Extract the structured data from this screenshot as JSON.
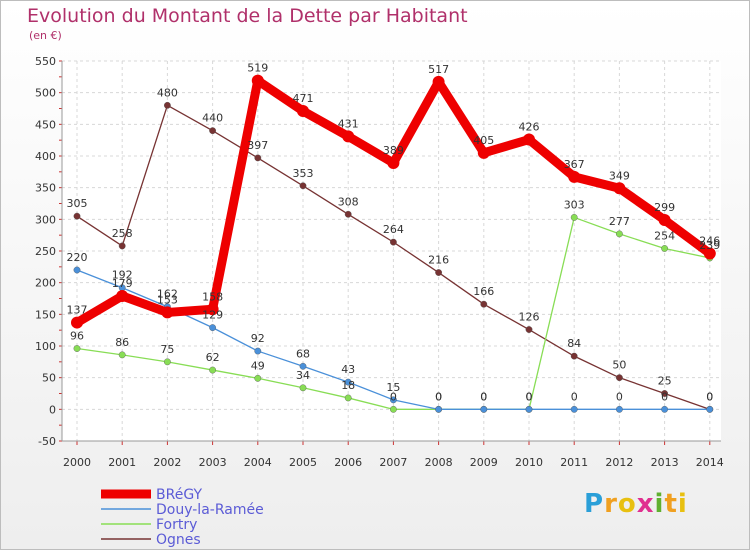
{
  "chart_data": {
    "type": "line",
    "title": "Evolution du Montant de la Dette par Habitant",
    "subtitle": "(en €)",
    "x": [
      "2000",
      "2001",
      "2002",
      "2003",
      "2004",
      "2005",
      "2006",
      "2007",
      "2008",
      "2009",
      "2010",
      "2011",
      "2012",
      "2013",
      "2014"
    ],
    "ylim": [
      -50,
      550
    ],
    "yticks": [
      -50,
      0,
      50,
      100,
      150,
      200,
      250,
      300,
      350,
      400,
      450,
      500,
      550
    ],
    "grid": true,
    "legend_position": "bottom-left",
    "series": [
      {
        "name": "BRéGY",
        "color": "#ee0000",
        "values": [
          137,
          179,
          153,
          158,
          519,
          471,
          431,
          389,
          517,
          405,
          426,
          367,
          349,
          299,
          246
        ],
        "labels": [
          "137",
          "179",
          "153",
          "158",
          "519",
          "471",
          "431",
          "389",
          "517",
          "405",
          "426",
          "367",
          "349",
          "299",
          "246"
        ]
      },
      {
        "name": "Douy-la-Ramée",
        "color": "#4a90d9",
        "values": [
          220,
          192,
          162,
          129,
          92,
          68,
          43,
          15,
          0,
          0,
          0,
          0,
          0,
          0,
          0
        ],
        "labels": [
          "220",
          "192",
          "162",
          "129",
          "92",
          "68",
          "43",
          "15",
          "0",
          "0",
          "0",
          "0",
          "0",
          "0",
          "0"
        ]
      },
      {
        "name": "Fortry",
        "color": "#88dd55",
        "values": [
          96,
          86,
          75,
          62,
          49,
          34,
          18,
          0,
          0,
          0,
          0,
          303,
          277,
          254,
          239
        ],
        "labels": [
          "96",
          "86",
          "75",
          "62",
          "49",
          "34",
          "18",
          "0",
          "0",
          "0",
          "0",
          "303",
          "277",
          "254",
          "239"
        ]
      },
      {
        "name": "Ognes",
        "color": "#773333",
        "values": [
          305,
          258,
          480,
          440,
          397,
          353,
          308,
          264,
          216,
          166,
          126,
          84,
          50,
          25,
          0
        ],
        "labels": [
          "305",
          "258",
          "480",
          "440",
          "397",
          "353",
          "308",
          "264",
          "216",
          "166",
          "126",
          "84",
          "50",
          "25",
          "0"
        ]
      }
    ]
  },
  "logo": {
    "letters": [
      "P",
      "r",
      "o",
      "x",
      "i",
      "t",
      "i"
    ],
    "colors": [
      "#2a9fd8",
      "#f0a020",
      "#e8c010",
      "#e03090",
      "#60b030",
      "#f0a020",
      "#e8c010"
    ]
  }
}
